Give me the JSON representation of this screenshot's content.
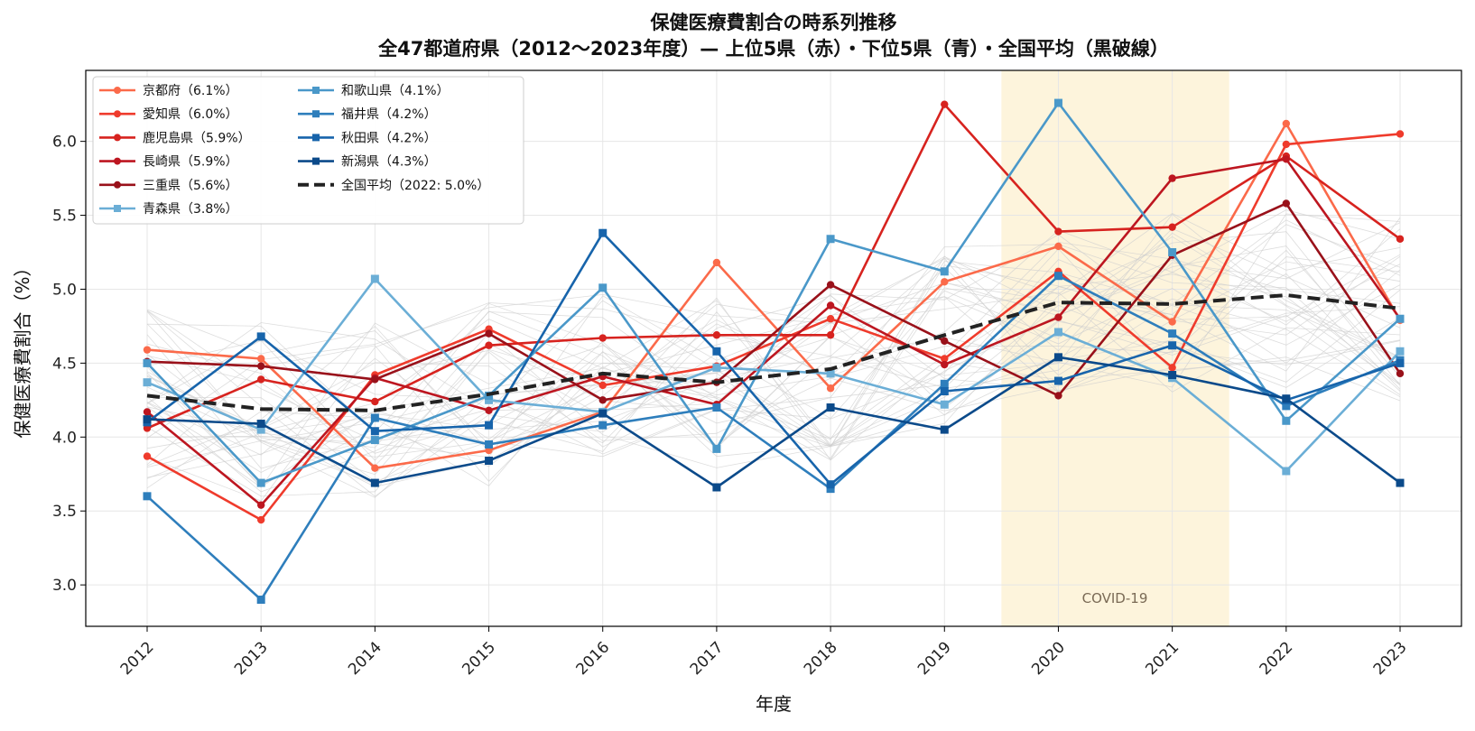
{
  "chart_data": {
    "type": "line",
    "title": "保健医療費割合の時系列推移",
    "subtitle": "全47都道府県（2012〜2023年度）— 上位5県（赤）・下位5県（青）・全国平均（黒破線）",
    "xlabel": "年度",
    "ylabel": "保健医療費割合（%）",
    "x": [
      "2012",
      "2013",
      "2014",
      "2015",
      "2016",
      "2017",
      "2018",
      "2019",
      "2020",
      "2021",
      "2022",
      "2023"
    ],
    "ylim": [
      2.72,
      6.48
    ],
    "yticks": [
      "3.0",
      "3.5",
      "4.0",
      "4.5",
      "5.0",
      "5.5",
      "6.0"
    ],
    "grid": true,
    "legend_position": "top-left",
    "shaded_region": {
      "from": "2019.5",
      "to": "2021.5",
      "label": "COVID-19",
      "color": "#fdf4dc"
    },
    "series": [
      {
        "name": "京都府（6.1%）",
        "group": "top",
        "marker": "circle",
        "color": "#fb6a4a",
        "values": [
          4.59,
          4.53,
          3.79,
          3.91,
          4.17,
          5.18,
          4.33,
          5.05,
          5.29,
          4.78,
          6.12,
          4.79
        ]
      },
      {
        "name": "愛知県（6.0%）",
        "group": "top",
        "marker": "circle",
        "color": "#ef3b2c",
        "values": [
          3.87,
          3.44,
          4.42,
          4.73,
          4.35,
          4.48,
          4.8,
          4.53,
          5.12,
          4.47,
          5.98,
          6.05
        ]
      },
      {
        "name": "鹿児島県（5.9%）",
        "group": "top",
        "marker": "circle",
        "color": "#d7231f",
        "values": [
          4.06,
          4.39,
          4.24,
          4.62,
          4.67,
          4.69,
          4.69,
          6.25,
          5.39,
          5.42,
          5.9,
          5.34
        ]
      },
      {
        "name": "長崎県（5.9%）",
        "group": "top",
        "marker": "circle",
        "color": "#bd1620",
        "values": [
          4.17,
          3.54,
          4.4,
          4.18,
          4.41,
          4.22,
          4.89,
          4.49,
          4.81,
          5.75,
          5.88,
          4.8
        ]
      },
      {
        "name": "三重県（5.6%）",
        "group": "top",
        "marker": "circle",
        "color": "#99111a",
        "values": [
          4.51,
          4.48,
          4.39,
          4.7,
          4.25,
          4.37,
          5.03,
          4.65,
          4.28,
          5.23,
          5.58,
          4.43
        ]
      },
      {
        "name": "青森県（3.8%）",
        "group": "bottom",
        "marker": "square",
        "color": "#6baed6",
        "values": [
          4.37,
          4.05,
          5.07,
          4.25,
          4.17,
          4.47,
          4.43,
          4.22,
          4.71,
          4.4,
          3.77,
          4.58
        ]
      },
      {
        "name": "和歌山県（4.1%）",
        "group": "bottom",
        "marker": "square",
        "color": "#4a98c9",
        "values": [
          4.5,
          3.69,
          3.98,
          4.28,
          5.01,
          3.92,
          5.34,
          5.12,
          6.26,
          5.25,
          4.11,
          4.8
        ]
      },
      {
        "name": "福井県（4.2%）",
        "group": "bottom",
        "marker": "square",
        "color": "#2e7ebc",
        "values": [
          3.6,
          2.9,
          4.13,
          3.95,
          4.08,
          4.2,
          3.65,
          4.36,
          5.09,
          4.7,
          4.21,
          4.52
        ]
      },
      {
        "name": "秋田県（4.2%）",
        "group": "bottom",
        "marker": "square",
        "color": "#1764ab",
        "values": [
          4.1,
          4.68,
          4.04,
          4.08,
          5.38,
          4.58,
          3.68,
          4.31,
          4.38,
          4.62,
          4.25,
          4.5
        ]
      },
      {
        "name": "新潟県（4.3%）",
        "group": "bottom",
        "marker": "square",
        "color": "#0b4a8a",
        "values": [
          4.12,
          4.09,
          3.69,
          3.84,
          4.16,
          3.66,
          4.2,
          4.05,
          4.54,
          4.42,
          4.26,
          3.69
        ]
      },
      {
        "name": "全国平均（2022: 5.0%）",
        "group": "average",
        "marker": "none",
        "color": "#222222",
        "dashed": true,
        "values": [
          4.28,
          4.19,
          4.18,
          4.29,
          4.43,
          4.37,
          4.46,
          4.69,
          4.91,
          4.9,
          4.96,
          4.87
        ]
      }
    ]
  }
}
